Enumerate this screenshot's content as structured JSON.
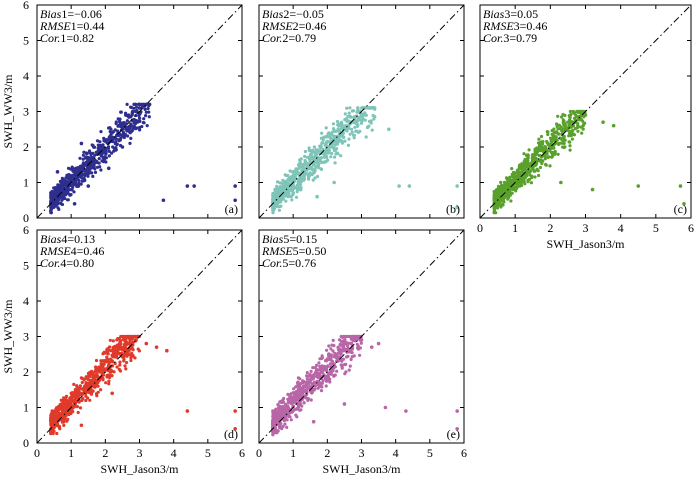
{
  "figure": {
    "xlabel": "SWH_Jason3/m",
    "ylabel": "SWH_WW3/m"
  },
  "chart_data": [
    {
      "type": "scatter",
      "panel": "(a)",
      "color": "#2e2e8f",
      "xlim": [
        0,
        6
      ],
      "ylim": [
        0,
        6
      ],
      "x_ticks": [
        0,
        1,
        2,
        3,
        4,
        5,
        6
      ],
      "y_ticks": [
        0,
        1,
        2,
        3,
        4,
        5,
        6
      ],
      "stats": [
        {
          "name": "Bias",
          "index": "1",
          "value": "=−0.06"
        },
        {
          "name": "RMSE",
          "index": "1",
          "value": "=0.44"
        },
        {
          "name": "Cor.",
          "index": "1",
          "value": "=0.82"
        }
      ],
      "show_xticklabels": false,
      "show_yticklabels": true,
      "show_xlabel": false,
      "show_ylabel": true,
      "points": [
        [
          0.5,
          0.5
        ],
        [
          0.7,
          0.8
        ],
        [
          0.9,
          0.7
        ],
        [
          1.0,
          1.1
        ],
        [
          1.2,
          1.3
        ],
        [
          1.4,
          1.2
        ],
        [
          1.6,
          1.7
        ],
        [
          1.8,
          1.9
        ],
        [
          2.0,
          2.2
        ],
        [
          2.2,
          2.4
        ],
        [
          2.4,
          2.6
        ],
        [
          2.6,
          2.9
        ],
        [
          2.8,
          3.0
        ],
        [
          3.0,
          3.1
        ],
        [
          3.2,
          3.2
        ],
        [
          1.1,
          0.4
        ],
        [
          1.5,
          0.9
        ],
        [
          2.1,
          1.4
        ],
        [
          2.5,
          2.0
        ],
        [
          0.6,
          1.3
        ],
        [
          1.3,
          2.1
        ],
        [
          3.7,
          0.5
        ],
        [
          4.4,
          0.9
        ],
        [
          4.6,
          0.9
        ],
        [
          5.8,
          0.9
        ],
        [
          5.8,
          0.5
        ]
      ],
      "cloud": {
        "x_range": [
          0.4,
          3.3
        ],
        "slope": 0.98,
        "intercept": 0.05,
        "spread": 0.45,
        "n": 700,
        "ymax": 3.2
      }
    },
    {
      "type": "scatter",
      "panel": "(b)",
      "color": "#7fc4b8",
      "xlim": [
        0,
        6
      ],
      "ylim": [
        0,
        6
      ],
      "x_ticks": [
        0,
        1,
        2,
        3,
        4,
        5,
        6
      ],
      "y_ticks": [
        0,
        1,
        2,
        3,
        4,
        5,
        6
      ],
      "stats": [
        {
          "name": "Bias",
          "index": "2",
          "value": "=−0.05"
        },
        {
          "name": "RMSE",
          "index": "2",
          "value": "=0.46"
        },
        {
          "name": "Cor.",
          "index": "2",
          "value": "=0.79"
        }
      ],
      "show_xticklabels": false,
      "show_yticklabels": false,
      "show_xlabel": false,
      "show_ylabel": false,
      "points": [
        [
          0.5,
          0.4
        ],
        [
          0.8,
          0.9
        ],
        [
          1.0,
          0.7
        ],
        [
          1.3,
          1.4
        ],
        [
          1.6,
          1.5
        ],
        [
          1.9,
          1.8
        ],
        [
          2.2,
          2.3
        ],
        [
          2.5,
          2.5
        ],
        [
          2.8,
          2.8
        ],
        [
          3.0,
          2.9
        ],
        [
          3.3,
          3.1
        ],
        [
          3.8,
          2.5
        ],
        [
          2.2,
          1.0
        ],
        [
          1.7,
          0.6
        ],
        [
          4.1,
          0.9
        ],
        [
          4.4,
          0.9
        ],
        [
          5.8,
          0.9
        ],
        [
          5.8,
          0.3
        ]
      ],
      "cloud": {
        "x_range": [
          0.4,
          3.4
        ],
        "slope": 0.97,
        "intercept": 0.05,
        "spread": 0.45,
        "n": 700,
        "ymax": 3.1
      }
    },
    {
      "type": "scatter",
      "panel": "(c)",
      "color": "#5aa02c",
      "xlim": [
        0,
        6
      ],
      "ylim": [
        0,
        6
      ],
      "x_ticks": [
        0,
        1,
        2,
        3,
        4,
        5,
        6
      ],
      "y_ticks": [
        0,
        1,
        2,
        3,
        4,
        5,
        6
      ],
      "stats": [
        {
          "name": "Bias",
          "index": "3",
          "value": "=0.05"
        },
        {
          "name": "RMSE",
          "index": "3",
          "value": "=0.46"
        },
        {
          "name": "Cor.",
          "index": "3",
          "value": "=0.79"
        }
      ],
      "show_xticklabels": true,
      "show_yticklabels": false,
      "show_xlabel": true,
      "show_ylabel": false,
      "points": [
        [
          0.6,
          0.5
        ],
        [
          0.9,
          1.0
        ],
        [
          1.2,
          1.3
        ],
        [
          1.5,
          1.6
        ],
        [
          1.8,
          1.9
        ],
        [
          2.1,
          2.2
        ],
        [
          2.4,
          2.5
        ],
        [
          2.7,
          2.7
        ],
        [
          3.0,
          2.9
        ],
        [
          3.5,
          2.7
        ],
        [
          3.8,
          2.6
        ],
        [
          2.3,
          1.0
        ],
        [
          3.2,
          0.8
        ],
        [
          4.5,
          0.9
        ],
        [
          5.7,
          0.9
        ],
        [
          5.8,
          0.4
        ]
      ],
      "cloud": {
        "x_range": [
          0.4,
          3.0
        ],
        "slope": 1.0,
        "intercept": 0.05,
        "spread": 0.45,
        "n": 700,
        "ymax": 3.0
      }
    },
    {
      "type": "scatter",
      "panel": "(d)",
      "color": "#e03a2b",
      "xlim": [
        0,
        6
      ],
      "ylim": [
        0,
        6
      ],
      "x_ticks": [
        0,
        1,
        2,
        3,
        4,
        5,
        6
      ],
      "y_ticks": [
        0,
        1,
        2,
        3,
        4,
        5,
        6
      ],
      "stats": [
        {
          "name": "Bias",
          "index": "4",
          "value": "=0.13"
        },
        {
          "name": "RMSE",
          "index": "4",
          "value": "=0.46"
        },
        {
          "name": "Cor.",
          "index": "4",
          "value": "=0.80"
        }
      ],
      "show_xticklabels": true,
      "show_yticklabels": true,
      "show_xlabel": true,
      "show_ylabel": true,
      "points": [
        [
          0.5,
          0.6
        ],
        [
          0.8,
          1.0
        ],
        [
          1.1,
          1.3
        ],
        [
          1.4,
          1.6
        ],
        [
          1.7,
          2.0
        ],
        [
          2.0,
          2.3
        ],
        [
          2.3,
          2.6
        ],
        [
          2.6,
          2.8
        ],
        [
          2.9,
          2.9
        ],
        [
          3.2,
          2.8
        ],
        [
          3.5,
          2.7
        ],
        [
          3.8,
          2.6
        ],
        [
          1.3,
          0.5
        ],
        [
          2.2,
          1.4
        ],
        [
          4.4,
          0.9
        ],
        [
          5.8,
          0.9
        ],
        [
          5.8,
          0.4
        ]
      ],
      "cloud": {
        "x_range": [
          0.4,
          3.0
        ],
        "slope": 1.0,
        "intercept": 0.12,
        "spread": 0.45,
        "n": 700,
        "ymax": 3.0
      }
    },
    {
      "type": "scatter",
      "panel": "(e)",
      "color": "#b866a8",
      "xlim": [
        0,
        6
      ],
      "ylim": [
        0,
        6
      ],
      "x_ticks": [
        0,
        1,
        2,
        3,
        4,
        5,
        6
      ],
      "y_ticks": [
        0,
        1,
        2,
        3,
        4,
        5,
        6
      ],
      "stats": [
        {
          "name": "Bias",
          "index": "5",
          "value": "=0.15"
        },
        {
          "name": "RMSE",
          "index": "5",
          "value": "=0.50"
        },
        {
          "name": "Cor.",
          "index": "5",
          "value": "=0.76"
        }
      ],
      "show_xticklabels": true,
      "show_yticklabels": false,
      "show_xlabel": true,
      "show_ylabel": false,
      "points": [
        [
          0.6,
          0.7
        ],
        [
          0.9,
          1.2
        ],
        [
          1.2,
          1.5
        ],
        [
          1.5,
          1.9
        ],
        [
          1.8,
          2.1
        ],
        [
          2.1,
          2.4
        ],
        [
          2.4,
          2.6
        ],
        [
          2.7,
          2.8
        ],
        [
          3.0,
          2.9
        ],
        [
          3.3,
          2.7
        ],
        [
          3.5,
          2.8
        ],
        [
          1.6,
          0.6
        ],
        [
          2.5,
          1.1
        ],
        [
          3.7,
          1.0
        ],
        [
          4.3,
          0.9
        ],
        [
          5.8,
          0.9
        ],
        [
          5.8,
          0.4
        ]
      ],
      "cloud": {
        "x_range": [
          0.4,
          3.0
        ],
        "slope": 1.0,
        "intercept": 0.14,
        "spread": 0.5,
        "n": 700,
        "ymax": 3.0
      }
    }
  ]
}
